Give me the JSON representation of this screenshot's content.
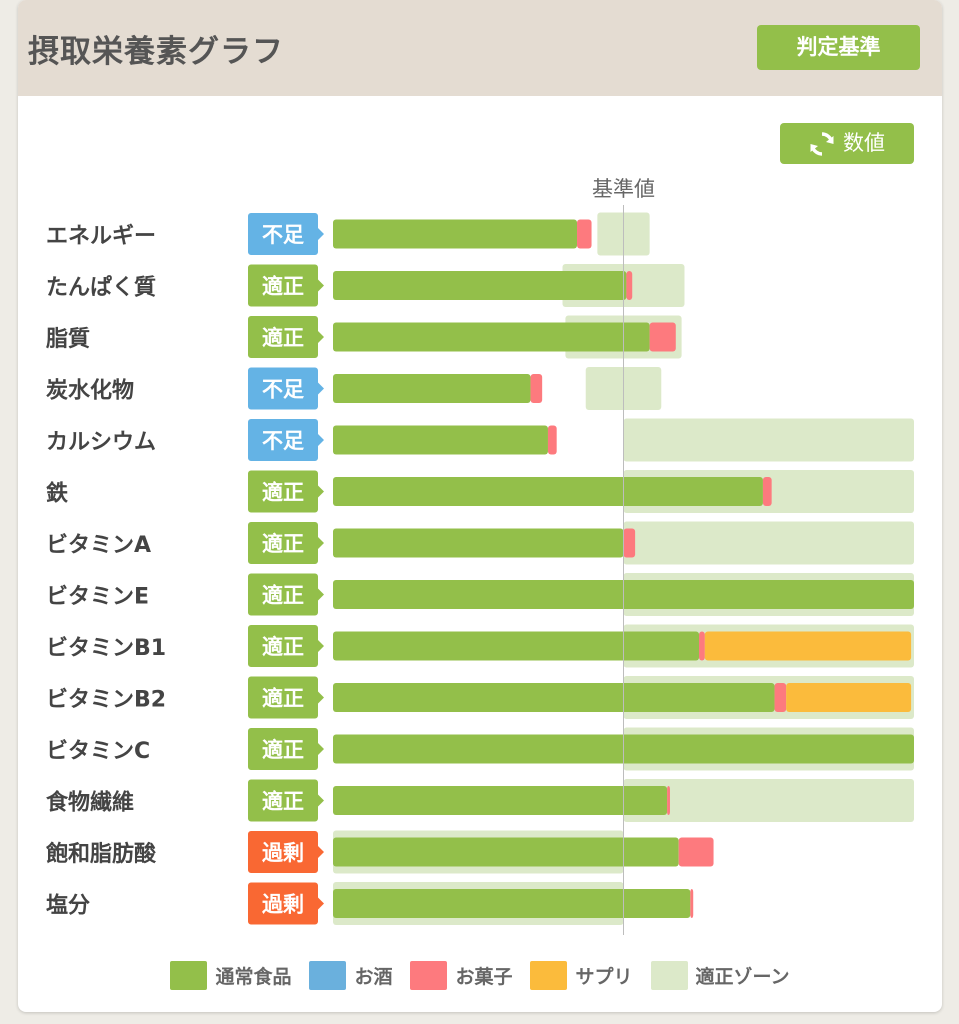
{
  "header": {
    "title": "摂取栄養素グラフ",
    "criteria_button": "判定基準"
  },
  "toggle": {
    "label": "数値"
  },
  "colors": {
    "food": "#93bf4a",
    "alcohol": "#6ab0dd",
    "snack": "#fd7a7e",
    "supplement": "#fbbb3c",
    "zone": "#dce9c9",
    "status_low": "#64b3e5",
    "status_ok": "#93bf4a",
    "status_high": "#f96833"
  },
  "legend": [
    {
      "key": "food",
      "label": "通常食品"
    },
    {
      "key": "alcohol",
      "label": "お酒"
    },
    {
      "key": "snack",
      "label": "お菓子"
    },
    {
      "key": "supplement",
      "label": "サプリ"
    },
    {
      "key": "zone",
      "label": "適正ゾーン"
    }
  ],
  "chart_data": {
    "type": "bar",
    "orientation": "horizontal",
    "stacked": true,
    "unit": "% of reference value",
    "reference_label": "基準値",
    "reference_value": 100,
    "xlim": [
      0,
      200
    ],
    "categories": [
      "エネルギー",
      "たんぱく質",
      "脂質",
      "炭水化物",
      "カルシウム",
      "鉄",
      "ビタミンA",
      "ビタミンE",
      "ビタミンB1",
      "ビタミンB2",
      "ビタミンC",
      "食物繊維",
      "飽和脂肪酸",
      "塩分"
    ],
    "status": [
      "不足",
      "適正",
      "適正",
      "不足",
      "不足",
      "適正",
      "適正",
      "適正",
      "適正",
      "適正",
      "適正",
      "適正",
      "過剰",
      "過剰"
    ],
    "status_type": [
      "low",
      "ok",
      "ok",
      "low",
      "low",
      "ok",
      "ok",
      "ok",
      "ok",
      "ok",
      "ok",
      "ok",
      "high",
      "high"
    ],
    "series": [
      {
        "name": "通常食品",
        "key": "food",
        "values": [
          84,
          101,
          109,
          68,
          74,
          148,
          100,
          200,
          126,
          152,
          200,
          115,
          119,
          123
        ]
      },
      {
        "name": "お酒",
        "key": "alcohol",
        "values": [
          0,
          0,
          0,
          0,
          0,
          0,
          0,
          0,
          0,
          0,
          0,
          0,
          0,
          0
        ]
      },
      {
        "name": "お菓子",
        "key": "snack",
        "values": [
          5,
          2,
          9,
          4,
          3,
          3,
          4,
          0,
          2,
          4,
          0,
          1,
          12,
          1
        ]
      },
      {
        "name": "サプリ",
        "key": "supplement",
        "values": [
          0,
          0,
          0,
          0,
          0,
          0,
          0,
          0,
          71,
          43,
          0,
          0,
          0,
          0
        ]
      }
    ],
    "appropriate_zone": [
      [
        91,
        109
      ],
      [
        79,
        121
      ],
      [
        80,
        120
      ],
      [
        87,
        113
      ],
      [
        100,
        200
      ],
      [
        100,
        200
      ],
      [
        100,
        200
      ],
      [
        100,
        200
      ],
      [
        100,
        200
      ],
      [
        100,
        200
      ],
      [
        100,
        200
      ],
      [
        100,
        200
      ],
      [
        0,
        100
      ],
      [
        0,
        100
      ]
    ],
    "grid": false
  }
}
